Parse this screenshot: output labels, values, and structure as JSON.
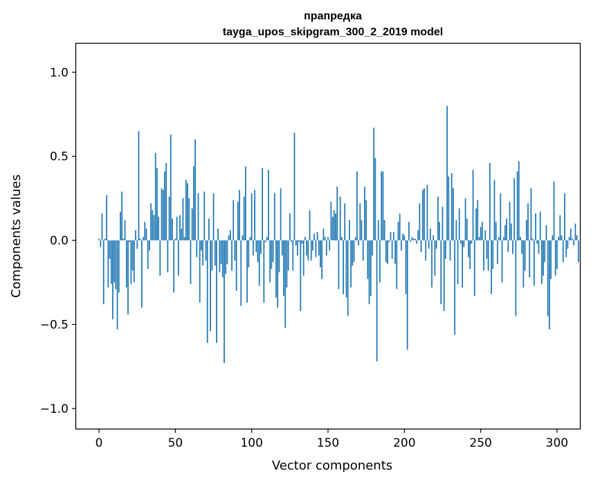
{
  "chart_data": {
    "type": "bar",
    "title": "прапредка",
    "subtitle": "tayga_upos_skipgram_300_2_2019 model",
    "xlabel": "Vector components",
    "ylabel": "Components values",
    "xlim": [
      -15,
      315
    ],
    "ylim": [
      -1.12,
      1.17
    ],
    "xticks": [
      0,
      50,
      100,
      150,
      200,
      250,
      300
    ],
    "yticks": [
      -1.0,
      -0.5,
      0.0,
      0.5,
      1.0
    ],
    "ytick_labels": [
      "−1.0",
      "−0.5",
      "0.0",
      "0.5",
      "1.0"
    ],
    "bar_color": "#1f77b4",
    "values": [
      0.01,
      -0.04,
      0.16,
      -0.38,
      0.01,
      0.27,
      -0.28,
      -0.11,
      -0.26,
      -0.47,
      -0.25,
      -0.29,
      -0.53,
      -0.31,
      0.17,
      0.29,
      0.01,
      0.12,
      -0.28,
      -0.44,
      -0.01,
      -0.26,
      -0.18,
      -0.25,
      0.06,
      -0.05,
      0.65,
      0.01,
      -0.4,
      0.02,
      0.11,
      0.07,
      -0.17,
      -0.06,
      0.22,
      0.18,
      0.15,
      0.52,
      0.43,
      0.14,
      -0.21,
      0.31,
      0.3,
      0.41,
      0.46,
      -0.19,
      0.26,
      0.63,
      0.13,
      -0.31,
      0.01,
      0.14,
      -0.21,
      0.15,
      0.07,
      0.25,
      0.02,
      0.36,
      0.34,
      0.25,
      -0.26,
      0.19,
      0.44,
      0.6,
      -0.1,
      0.28,
      -0.37,
      -0.06,
      -0.15,
      0.29,
      -0.12,
      -0.61,
      0.13,
      -0.54,
      -0.18,
      0.28,
      -0.15,
      -0.61,
      0.07,
      -0.19,
      -0.14,
      -0.22,
      -0.73,
      -0.2,
      -0.14,
      0.03,
      0.06,
      -0.18,
      0.24,
      -0.12,
      -0.3,
      0.23,
      0.3,
      -0.39,
      0.03,
      0.26,
      0.44,
      -0.37,
      -0.16,
      0.02,
      0.28,
      -0.09,
      0.3,
      -0.07,
      -0.13,
      -0.27,
      -0.08,
      0.43,
      -0.37,
      -0.01,
      0.02,
      0.42,
      -0.25,
      -0.17,
      -0.13,
      0.28,
      -0.34,
      -0.4,
      -0.19,
      0.31,
      -0.09,
      -0.33,
      -0.52,
      -0.28,
      -0.18,
      0.16,
      -0.01,
      -0.18,
      0.64,
      -0.03,
      -0.09,
      -0.01,
      -0.42,
      -0.02,
      -0.21,
      0.02,
      -0.09,
      -0.12,
      0.18,
      -0.12,
      -0.06,
      0.04,
      -0.1,
      0.05,
      -0.09,
      -0.16,
      -0.23,
      0.07,
      0.02,
      -0.09,
      0.02,
      -0.06,
      0.23,
      0.14,
      0.18,
      0.16,
      0.32,
      -0.29,
      0.26,
      0.02,
      -0.32,
      0.22,
      -0.34,
      -0.45,
      0.12,
      -0.28,
      -0.15,
      -0.13,
      0.02,
      0.41,
      -0.03,
      0.22,
      0.12,
      -0.12,
      0.32,
      0.24,
      -0.23,
      -0.38,
      -0.33,
      -0.09,
      0.67,
      0.49,
      -0.72,
      0.12,
      -0.25,
      0.41,
      0.41,
      0.12,
      -0.13,
      -0.14,
      -0.01,
      0.05,
      -0.11,
      0.05,
      -0.14,
      -0.29,
      0.11,
      0.16,
      -0.06,
      0.04,
      0.03,
      -0.32,
      -0.65,
      0.11,
      -0.01,
      0.02,
      0.01,
      0.01,
      -0.02,
      0.06,
      0.22,
      -0.07,
      0.3,
      0.31,
      -0.12,
      0.33,
      -0.05,
      0.07,
      -0.28,
      0.03,
      -0.21,
      -0.05,
      0.26,
      0.11,
      -0.38,
      0.2,
      -0.42,
      -0.11,
      0.8,
      0.38,
      -0.12,
      0.4,
      0.31,
      -0.56,
      0.12,
      -0.26,
      0.19,
      -0.02,
      -0.28,
      -0.04,
      0.25,
      0.13,
      -0.1,
      -0.17,
      -0.02,
      0.42,
      -0.33,
      0.19,
      0.24,
      0.02,
      0.08,
      0.11,
      -0.18,
      0.06,
      -0.11,
      -0.18,
      0.46,
      -0.32,
      -0.17,
      0.36,
      0.11,
      -0.14,
      0.02,
      0.28,
      -0.25,
      0.02,
      0.09,
      0.13,
      -0.07,
      0.23,
      0.1,
      -0.08,
      0.37,
      -0.45,
      0.41,
      0.47,
      0.02,
      -0.08,
      -0.28,
      -0.18,
      0.12,
      0.22,
      -0.22,
      0.31,
      0.01,
      -0.27,
      0.16,
      -0.02,
      -0.08,
      0.17,
      -0.26,
      -0.21,
      -0.13,
      0.09,
      -0.45,
      -0.53,
      -0.23,
      0.03,
      0.35,
      -0.21,
      -0.17,
      0.02,
      0.15,
      0.03,
      -0.13,
      0.28,
      -0.1,
      -0.05,
      0.02,
      0.07,
      0.01,
      -0.03,
      0.1,
      0.03,
      -0.13
    ]
  }
}
